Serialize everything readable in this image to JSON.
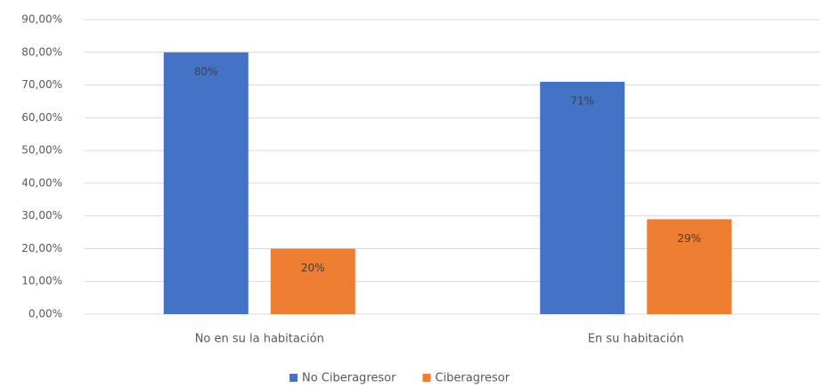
{
  "chart_data": {
    "type": "bar",
    "categories": [
      "No en su la habitación",
      "En su habitación"
    ],
    "series": [
      {
        "name": "No Ciberagresor",
        "color": "#4472c4",
        "values": [
          80,
          71
        ],
        "value_labels": [
          "80%",
          "71%"
        ]
      },
      {
        "name": "Ciberagresor",
        "color": "#ed7d31",
        "values": [
          20,
          29
        ],
        "value_labels": [
          "20%",
          "29%"
        ]
      }
    ],
    "ylim": [
      0,
      90
    ],
    "yticks": [
      {
        "value": 0,
        "label": "0,00%"
      },
      {
        "value": 10,
        "label": "10,00%"
      },
      {
        "value": 20,
        "label": "20,00%"
      },
      {
        "value": 30,
        "label": "30,00%"
      },
      {
        "value": 40,
        "label": "40,00%"
      },
      {
        "value": 50,
        "label": "50,00%"
      },
      {
        "value": 60,
        "label": "60,00%"
      },
      {
        "value": 70,
        "label": "70,00%"
      },
      {
        "value": 80,
        "label": "80,00%"
      },
      {
        "value": 90,
        "label": "90,00%"
      }
    ],
    "grid": true,
    "legend": "bottom"
  }
}
